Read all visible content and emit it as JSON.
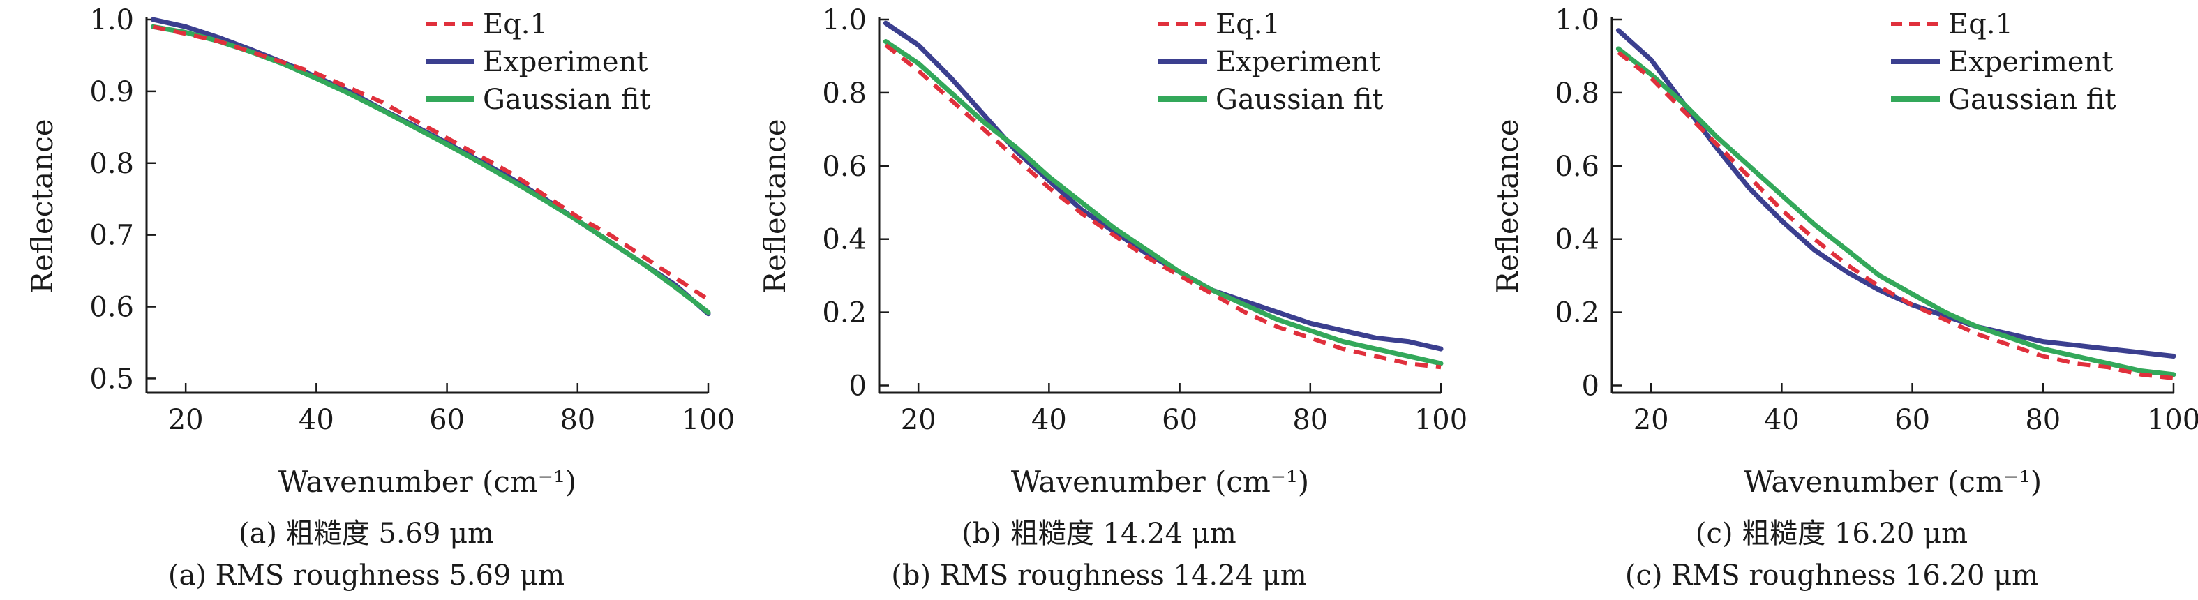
{
  "colors": {
    "eq1": "#e0303c",
    "experiment": "#3b3f8f",
    "gaussian": "#33a85a",
    "axis": "#1a1a1a"
  },
  "chart_data": [
    {
      "type": "line",
      "xlabel": "Wavenumber (cm⁻¹)",
      "ylabel": "Reflectance",
      "xlim": [
        14,
        100
      ],
      "ylim": [
        0.48,
        1.0
      ],
      "xticks": [
        20,
        40,
        60,
        80,
        100
      ],
      "yticks": [
        0.5,
        0.6,
        0.7,
        0.8,
        0.9,
        1.0
      ],
      "ytick_labels": [
        "0.5",
        "0.6",
        "0.7",
        "0.8",
        "0.9",
        "1.0"
      ],
      "legend": "top-right",
      "caption_cn": "(a) 粗糙度 5.69 μm",
      "caption_en": "(a) RMS roughness 5.69 μm",
      "x": [
        15,
        20,
        25,
        30,
        35,
        40,
        45,
        50,
        55,
        60,
        65,
        70,
        75,
        80,
        85,
        90,
        95,
        100
      ],
      "series": [
        {
          "name": "Eq.1",
          "style": "dashed",
          "values": [
            0.99,
            0.98,
            0.97,
            0.955,
            0.94,
            0.925,
            0.905,
            0.885,
            0.86,
            0.835,
            0.81,
            0.785,
            0.755,
            0.725,
            0.7,
            0.67,
            0.64,
            0.61
          ]
        },
        {
          "name": "Experiment",
          "style": "solid",
          "values": [
            1.0,
            0.99,
            0.975,
            0.958,
            0.94,
            0.92,
            0.9,
            0.875,
            0.852,
            0.828,
            0.803,
            0.778,
            0.75,
            0.72,
            0.69,
            0.66,
            0.63,
            0.59
          ]
        },
        {
          "name": "Gaussian fit",
          "style": "solid",
          "values": [
            0.99,
            0.982,
            0.97,
            0.955,
            0.938,
            0.918,
            0.897,
            0.874,
            0.85,
            0.826,
            0.801,
            0.775,
            0.748,
            0.72,
            0.69,
            0.66,
            0.627,
            0.592
          ]
        }
      ]
    },
    {
      "type": "line",
      "xlabel": "Wavenumber (cm⁻¹)",
      "ylabel": "Reflectance",
      "xlim": [
        14,
        100
      ],
      "ylim": [
        -0.02,
        1.0
      ],
      "xticks": [
        20,
        40,
        60,
        80,
        100
      ],
      "yticks": [
        0,
        0.2,
        0.4,
        0.6,
        0.8,
        1.0
      ],
      "ytick_labels": [
        "0",
        "0.2",
        "0.4",
        "0.6",
        "0.8",
        "1.0"
      ],
      "legend": "top-right",
      "caption_cn": "(b) 粗糙度 14.24 μm",
      "caption_en": "(b) RMS roughness 14.24 μm",
      "x": [
        15,
        20,
        25,
        30,
        35,
        40,
        45,
        50,
        55,
        60,
        65,
        70,
        75,
        80,
        85,
        90,
        95,
        100
      ],
      "series": [
        {
          "name": "Eq.1",
          "style": "dashed",
          "values": [
            0.93,
            0.86,
            0.78,
            0.7,
            0.62,
            0.54,
            0.47,
            0.41,
            0.35,
            0.3,
            0.25,
            0.2,
            0.16,
            0.13,
            0.1,
            0.08,
            0.06,
            0.05
          ]
        },
        {
          "name": "Experiment",
          "style": "solid",
          "values": [
            0.99,
            0.93,
            0.84,
            0.74,
            0.64,
            0.56,
            0.48,
            0.42,
            0.36,
            0.31,
            0.26,
            0.23,
            0.2,
            0.17,
            0.15,
            0.13,
            0.12,
            0.1
          ]
        },
        {
          "name": "Gaussian fit",
          "style": "solid",
          "values": [
            0.94,
            0.88,
            0.8,
            0.72,
            0.65,
            0.57,
            0.5,
            0.43,
            0.37,
            0.31,
            0.26,
            0.22,
            0.18,
            0.15,
            0.12,
            0.1,
            0.08,
            0.06
          ]
        }
      ]
    },
    {
      "type": "line",
      "xlabel": "Wavenumber (cm⁻¹)",
      "ylabel": "Reflectance",
      "xlim": [
        14,
        100
      ],
      "ylim": [
        -0.02,
        1.0
      ],
      "xticks": [
        20,
        40,
        60,
        80,
        100
      ],
      "yticks": [
        0,
        0.2,
        0.4,
        0.6,
        0.8,
        1.0
      ],
      "ytick_labels": [
        "0",
        "0.2",
        "0.4",
        "0.6",
        "0.8",
        "1.0"
      ],
      "legend": "top-right",
      "caption_cn": "(c) 粗糙度 16.20 μm",
      "caption_en": "(c) RMS roughness 16.20 μm",
      "x": [
        15,
        20,
        25,
        30,
        35,
        40,
        45,
        50,
        55,
        60,
        65,
        70,
        75,
        80,
        85,
        90,
        95,
        100
      ],
      "series": [
        {
          "name": "Eq.1",
          "style": "dashed",
          "values": [
            0.91,
            0.84,
            0.75,
            0.66,
            0.57,
            0.48,
            0.4,
            0.33,
            0.27,
            0.22,
            0.18,
            0.14,
            0.11,
            0.08,
            0.06,
            0.05,
            0.03,
            0.02
          ]
        },
        {
          "name": "Experiment",
          "style": "solid",
          "values": [
            0.97,
            0.89,
            0.77,
            0.65,
            0.54,
            0.45,
            0.37,
            0.31,
            0.26,
            0.22,
            0.19,
            0.16,
            0.14,
            0.12,
            0.11,
            0.1,
            0.09,
            0.08
          ]
        },
        {
          "name": "Gaussian fit",
          "style": "solid",
          "values": [
            0.92,
            0.85,
            0.77,
            0.68,
            0.6,
            0.52,
            0.44,
            0.37,
            0.3,
            0.25,
            0.2,
            0.16,
            0.13,
            0.1,
            0.08,
            0.06,
            0.04,
            0.03
          ]
        }
      ]
    }
  ]
}
